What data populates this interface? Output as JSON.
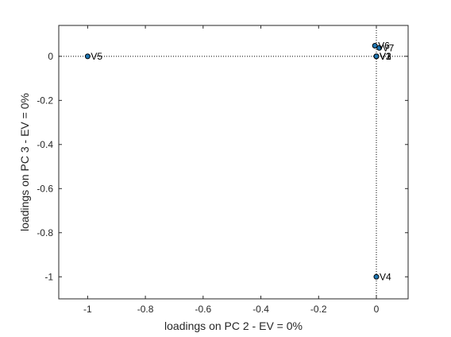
{
  "chart_data": {
    "type": "scatter",
    "xlabel": "loadings on PC 2 - EV = 0%",
    "ylabel": "loadings on PC 3 - EV = 0%",
    "xlim": [
      -1.1,
      0.11
    ],
    "ylim": [
      -1.1,
      0.14
    ],
    "xticks": [
      -1,
      -0.8,
      -0.6,
      -0.4,
      -0.2,
      0
    ],
    "xtick_labels": [
      "-1",
      "-0.8",
      "-0.6",
      "-0.4",
      "-0.2",
      "0"
    ],
    "yticks": [
      0,
      -0.2,
      -0.4,
      -0.6,
      -0.8,
      -1
    ],
    "ytick_labels": [
      "0",
      "-0.2",
      "-0.4",
      "-0.6",
      "-0.8",
      "-1"
    ],
    "grid": false,
    "reference_lines": {
      "x": 0,
      "y": 0,
      "style": "dotted"
    },
    "points": [
      {
        "label": "V1",
        "x": 0.0,
        "y": 0.0
      },
      {
        "label": "V2",
        "x": 0.0,
        "y": 0.0
      },
      {
        "label": "V3",
        "x": 0.0,
        "y": 0.0
      },
      {
        "label": "V4",
        "x": 0.0,
        "y": -1.0
      },
      {
        "label": "V5",
        "x": -1.0,
        "y": 0.0
      },
      {
        "label": "V6",
        "x": -0.005,
        "y": 0.048
      },
      {
        "label": "V7",
        "x": 0.01,
        "y": 0.038
      }
    ],
    "marker_color": "#1f77b4",
    "marker_edge_color": "#000000"
  }
}
